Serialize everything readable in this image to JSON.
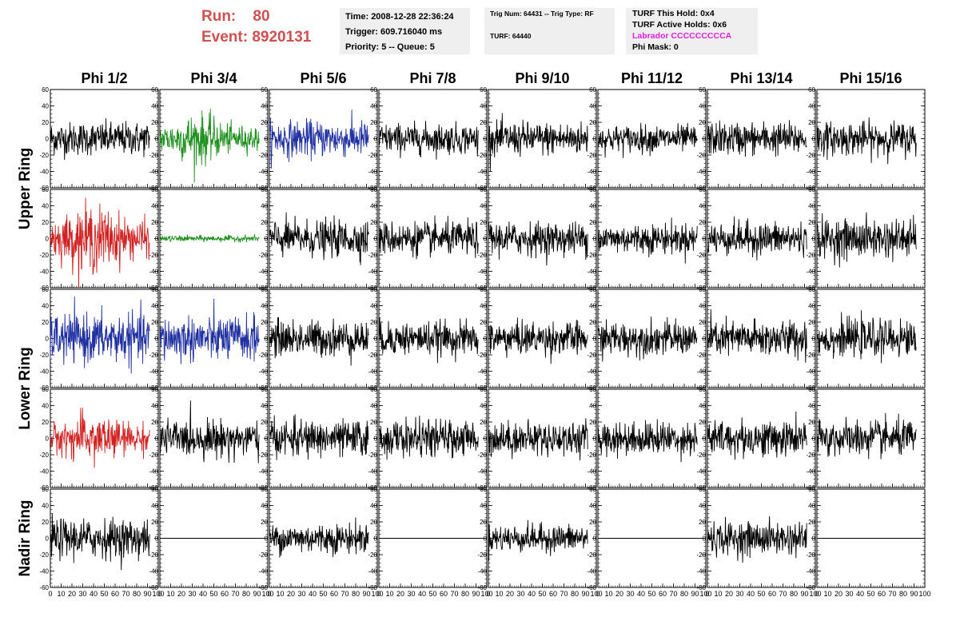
{
  "header": {
    "run_label": "Run:",
    "run_value": "80",
    "event_label": "Event:",
    "event_value": "8920131"
  },
  "info_time": {
    "time": "Time: 2008-12-28 22:36:24",
    "trigger": "Trigger: 609.716040 ms",
    "priority": "Priority: 5 -- Queue: 5"
  },
  "info_trig": {
    "trig": "Trig Num: 64431 -- Trig Type: RF",
    "turf": "TURF: 64440"
  },
  "info_turf": {
    "this_hold": "TURF This Hold: 0x4",
    "active_holds": "TURF Active Holds: 0x6",
    "labrador": "Labrador CCCCCCCCCA",
    "phi_mask": "Phi Mask: 0"
  },
  "colors": {
    "run_text": "#d05050",
    "labrador": "#e020e0",
    "trace_default": "#000000",
    "trace_green": "#209020",
    "trace_blue": "#2030a0",
    "trace_red": "#d02020",
    "panel_bg": "#efefef"
  },
  "chart_data": {
    "type": "line",
    "columns": [
      "Phi 1/2",
      "Phi 3/4",
      "Phi 5/6",
      "Phi 7/8",
      "Phi 9/10",
      "Phi 11/12",
      "Phi 13/14",
      "Phi 15/16"
    ],
    "row_groups": [
      {
        "label": "Upper Ring",
        "rows": [
          0,
          1
        ]
      },
      {
        "label": "Lower Ring",
        "rows": [
          2,
          3
        ]
      },
      {
        "label": "Nadir Ring",
        "rows": [
          4
        ]
      }
    ],
    "xlim": [
      0,
      100
    ],
    "ylim": [
      -60,
      60
    ],
    "y_ticks": [
      -60,
      -40,
      -20,
      0,
      20,
      40,
      60
    ],
    "x_ticks": [
      0,
      10,
      20,
      30,
      40,
      50,
      60,
      70,
      80,
      90,
      100
    ],
    "x_tick_labels": [
      "0",
      "10",
      "20",
      "30",
      "40",
      "50",
      "60",
      "70",
      "80",
      "90",
      "100"
    ],
    "y_tick_labels": [
      "-60",
      "-40",
      "-20",
      "0",
      "20",
      "40",
      "60"
    ],
    "samples_xmax": 92,
    "panels": [
      [
        {
          "color": "black",
          "amp": 22
        },
        {
          "color": "green",
          "amp": 30
        },
        {
          "color": "blue",
          "amp": 24
        },
        {
          "color": "black",
          "amp": 20
        },
        {
          "color": "black",
          "amp": 22
        },
        {
          "color": "black",
          "amp": 18
        },
        {
          "color": "black",
          "amp": 22
        },
        {
          "color": "black",
          "amp": 22
        }
      ],
      [
        {
          "color": "red",
          "amp": 40
        },
        {
          "color": "green",
          "amp": 4
        },
        {
          "color": "black",
          "amp": 24
        },
        {
          "color": "black",
          "amp": 22
        },
        {
          "color": "black",
          "amp": 22
        },
        {
          "color": "black",
          "amp": 20
        },
        {
          "color": "black",
          "amp": 22
        },
        {
          "color": "black",
          "amp": 26
        }
      ],
      [
        {
          "color": "blue",
          "amp": 32
        },
        {
          "color": "blue",
          "amp": 30
        },
        {
          "color": "black",
          "amp": 24
        },
        {
          "color": "black",
          "amp": 22
        },
        {
          "color": "black",
          "amp": 22
        },
        {
          "color": "black",
          "amp": 22
        },
        {
          "color": "black",
          "amp": 24
        },
        {
          "color": "black",
          "amp": 24
        }
      ],
      [
        {
          "color": "red",
          "amp": 30
        },
        {
          "color": "black",
          "amp": 24
        },
        {
          "color": "black",
          "amp": 24
        },
        {
          "color": "black",
          "amp": 24
        },
        {
          "color": "black",
          "amp": 22
        },
        {
          "color": "black",
          "amp": 22
        },
        {
          "color": "black",
          "amp": 24
        },
        {
          "color": "black",
          "amp": 24
        }
      ],
      [
        {
          "color": "black",
          "amp": 26
        },
        {
          "color": "flat",
          "amp": 0
        },
        {
          "color": "black",
          "amp": 20
        },
        {
          "color": "flat",
          "amp": 0
        },
        {
          "color": "black",
          "amp": 18
        },
        {
          "color": "flat",
          "amp": 0
        },
        {
          "color": "black",
          "amp": 22
        },
        {
          "color": "flat",
          "amp": 0
        }
      ]
    ]
  }
}
